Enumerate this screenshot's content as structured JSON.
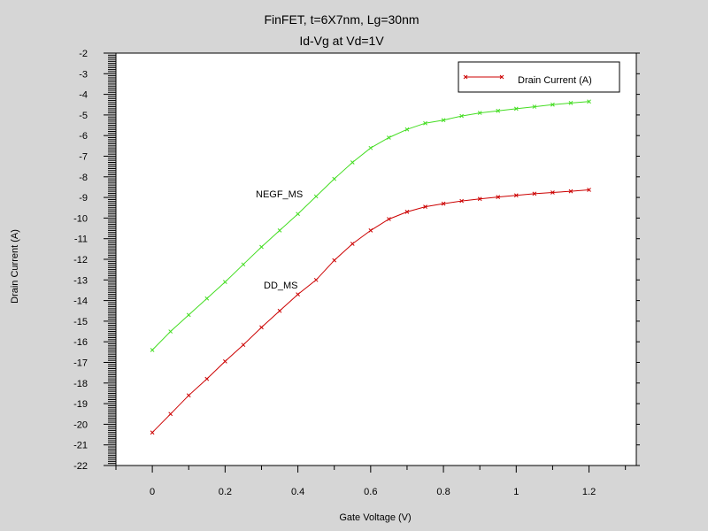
{
  "chart_data": {
    "type": "line",
    "title": "FinFET, t=6X7nm, Lg=30nm",
    "subtitle": "Id-Vg at Vd=1V",
    "xlabel": "Gate Voltage (V)",
    "ylabel": "Drain Current (A)",
    "xlim": [
      -0.1,
      1.33
    ],
    "ylim": [
      -22,
      -2
    ],
    "xticks": [
      0,
      0.2,
      0.4,
      0.6,
      0.8,
      1,
      1.2
    ],
    "xtick_labels": [
      "0",
      "0.2",
      "0.4",
      "0.6",
      "0.8",
      "1",
      "1.2"
    ],
    "yticks": [
      -2,
      -3,
      -4,
      -5,
      -6,
      -7,
      -8,
      -9,
      -10,
      -11,
      -12,
      -13,
      -14,
      -15,
      -16,
      -17,
      -18,
      -19,
      -20,
      -21,
      -22
    ],
    "ytick_labels": [
      "-2",
      "-3",
      "-4",
      "-5",
      "-6",
      "-7",
      "-8",
      "-9",
      "-10",
      "-11",
      "-12",
      "-13",
      "-14",
      "-15",
      "-16",
      "-17",
      "-18",
      "-19",
      "-20",
      "-21",
      "-22"
    ],
    "legend": {
      "position": "top-right",
      "entries": [
        "Drain Current (A)"
      ]
    },
    "grid": false,
    "x": [
      0,
      0.05,
      0.1,
      0.15,
      0.2,
      0.25,
      0.3,
      0.35,
      0.4,
      0.45,
      0.5,
      0.55,
      0.6,
      0.65,
      0.7,
      0.75,
      0.8,
      0.85,
      0.9,
      0.95,
      1.0,
      1.05,
      1.1,
      1.15,
      1.2
    ],
    "series": [
      {
        "label": "NEGF_MS",
        "color": "#44dd22",
        "values": [
          -16.4,
          -15.5,
          -14.7,
          -13.9,
          -13.1,
          -12.25,
          -11.4,
          -10.6,
          -9.8,
          -8.95,
          -8.1,
          -7.3,
          -6.6,
          -6.1,
          -5.7,
          -5.4,
          -5.25,
          -5.05,
          -4.9,
          -4.8,
          -4.7,
          -4.6,
          -4.5,
          -4.42,
          -4.35
        ]
      },
      {
        "label": "DD_MS",
        "color": "#cc0000",
        "values": [
          -20.4,
          -19.5,
          -18.6,
          -17.8,
          -16.95,
          -16.15,
          -15.3,
          -14.5,
          -13.7,
          -13.0,
          -12.05,
          -11.25,
          -10.6,
          -10.05,
          -9.7,
          -9.45,
          -9.3,
          -9.17,
          -9.07,
          -8.98,
          -8.9,
          -8.82,
          -8.76,
          -8.7,
          -8.63
        ]
      }
    ]
  },
  "colors": {
    "background": "#d6d6d6",
    "plot_background": "#ffffff",
    "legend_marker": "#cc0000"
  }
}
